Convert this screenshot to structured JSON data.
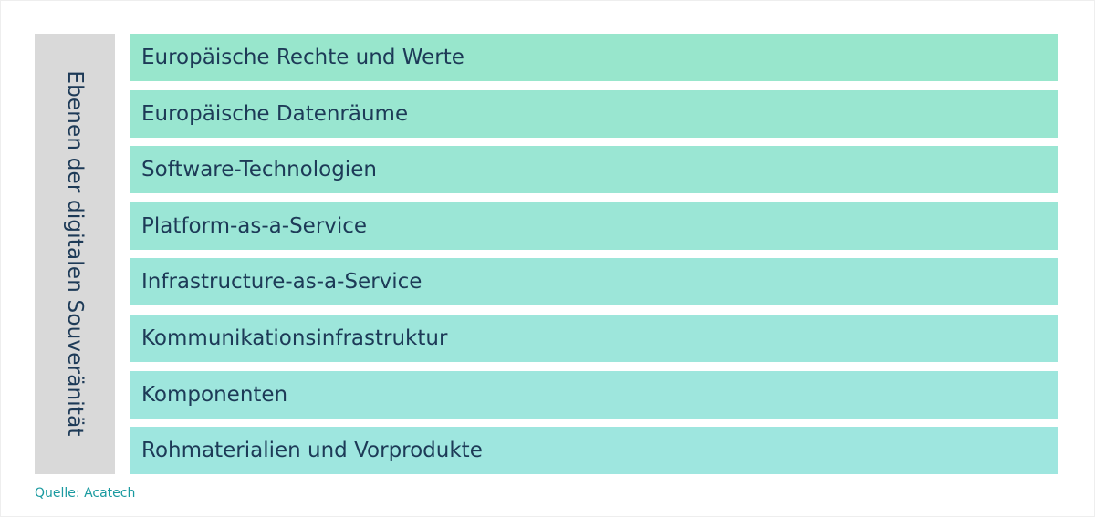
{
  "side_label": "Ebenen der digitalen Souveränität",
  "layers": [
    {
      "label": "Europäische Rechte und Werte",
      "color": "#98e6cc"
    },
    {
      "label": "Europäische Datenräume",
      "color": "#99e6d0"
    },
    {
      "label": "Software-Technologien",
      "color": "#9ae6d3"
    },
    {
      "label": "Platform-as-a-Service",
      "color": "#9be6d6"
    },
    {
      "label": "Infrastructure-as-a-Service",
      "color": "#9ce6d9"
    },
    {
      "label": "Kommunikationsinfrastruktur",
      "color": "#9de6db"
    },
    {
      "label": "Komponenten",
      "color": "#9ee6dd"
    },
    {
      "label": "Rohmaterialien und Vorprodukte",
      "color": "#9ee6df"
    }
  ],
  "source": "Quelle: Acatech"
}
